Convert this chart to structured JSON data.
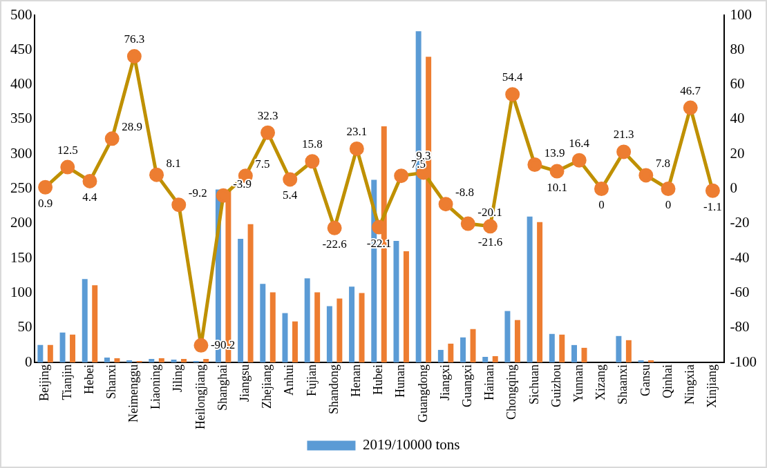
{
  "chart_data": {
    "type": "bar",
    "categories": [
      "Beijing",
      "Tianjin",
      "Hebei",
      "Shanxi",
      "Neimenggu",
      "Liaoning",
      "Jiling",
      "Heilongjiang",
      "Shanghai",
      "Jiangsu",
      "Zhejiang",
      "Anhui",
      "Fujian",
      "Shandong",
      "Henan",
      "Hubei",
      "Hunan",
      "Guangdong",
      "Jiangxi",
      "Guangxi",
      "Hainan",
      "Chongqing",
      "Sichuan",
      "Guizhou",
      "Yunnan",
      "Xizang",
      "Shaanxi",
      "Gansu",
      "Qinhai",
      "Ningxia",
      "Xinjiang"
    ],
    "series": [
      {
        "name": "2019/10000 tons",
        "color": "#5b9bd5",
        "values": [
          25,
          43,
          120,
          7,
          3,
          5,
          4,
          2,
          249,
          178,
          113,
          71,
          121,
          81,
          109,
          263,
          175,
          477,
          18,
          36,
          8,
          74,
          210,
          41,
          25,
          0,
          38,
          3,
          0,
          null,
          null
        ]
      },
      {
        "color": "#ed7d31",
        "values": [
          25,
          40,
          111,
          6,
          2,
          6,
          5,
          5,
          248,
          199,
          101,
          59,
          101,
          92,
          100,
          340,
          160,
          440,
          27,
          48,
          9,
          61,
          202,
          40,
          21,
          0,
          32,
          3,
          0,
          null,
          null
        ]
      },
      {
        "type": "line",
        "axis": "y2",
        "color": "#bf9000",
        "marker": "circle",
        "values": [
          0.9,
          12.5,
          4.4,
          28.9,
          76.3,
          8.1,
          -9.2,
          -90.2,
          -3.9,
          7.5,
          32.3,
          5.4,
          15.8,
          -22.6,
          23.1,
          -22.1,
          7.5,
          9.3,
          -8.8,
          -20.1,
          -21.6,
          54.4,
          13.9,
          10.1,
          16.4,
          0,
          21.3,
          7.8,
          0,
          46.7,
          -1.1
        ],
        "value_labels": [
          "0.9",
          "12.5",
          "4.4",
          "28.9",
          "76.3",
          "8.1",
          "-9.2",
          "-90.2",
          "-3.9",
          "7.5",
          "32.3",
          "5.4",
          "15.8",
          "-22.6",
          "23.1",
          "-22.1",
          "7.5",
          "9.3",
          "-8.8",
          "-20.1",
          "-21.6",
          "54.4",
          "13.9",
          "10.1",
          "16.4",
          "0",
          "21.3",
          "7.8",
          "0",
          "46.7",
          "-1.1"
        ]
      }
    ],
    "ylim": [
      0,
      500
    ],
    "yticks": [
      0,
      50,
      100,
      150,
      200,
      250,
      300,
      350,
      400,
      450,
      500
    ],
    "y2lim": [
      -100,
      100
    ],
    "y2ticks": [
      -100,
      -80,
      -60,
      -40,
      -20,
      0,
      20,
      40,
      60,
      80,
      100
    ],
    "grid": false,
    "legend": "bottom"
  }
}
